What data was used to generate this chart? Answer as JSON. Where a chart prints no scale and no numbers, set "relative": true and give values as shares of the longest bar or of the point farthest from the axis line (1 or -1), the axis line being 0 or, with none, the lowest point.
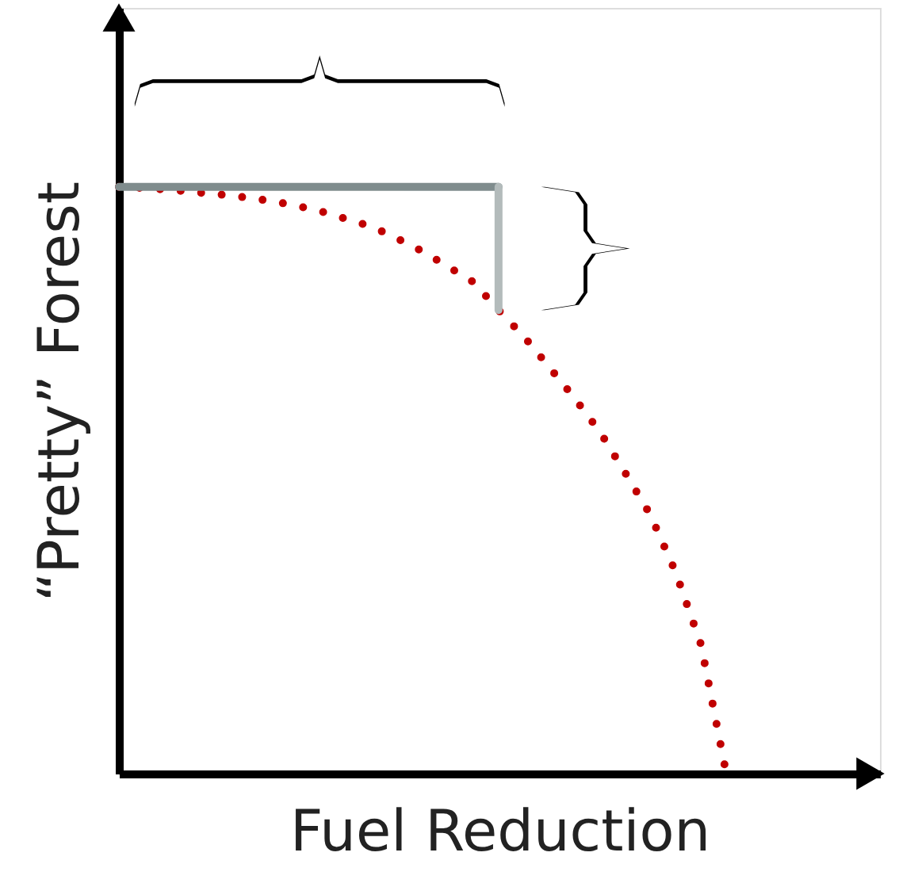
{
  "chart_data": {
    "type": "line",
    "relative": true,
    "xlabel": "Fuel Reduction",
    "ylabel": "“Pretty”  Forest",
    "grid": false,
    "line_style": "dotted",
    "color": "#c00000",
    "categories": [
      null,
      null,
      null,
      null,
      null,
      null,
      null,
      null,
      null,
      null,
      null,
      null,
      null,
      null,
      null,
      null,
      null,
      null,
      null,
      null,
      null,
      null,
      null,
      null,
      null
    ],
    "values": [
      1.0,
      0.998,
      0.995,
      0.991,
      0.987,
      0.982,
      0.976,
      0.968,
      0.958,
      0.945,
      0.932,
      0.912,
      0.89,
      0.864,
      0.838,
      0.79,
      0.745,
      0.693,
      0.64,
      0.583,
      0.513,
      0.441,
      0.343,
      0.22,
      0.0
    ]
  }
}
